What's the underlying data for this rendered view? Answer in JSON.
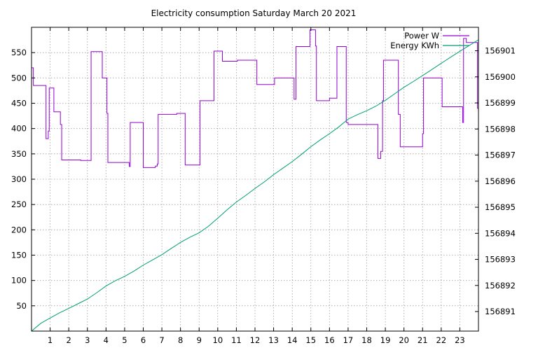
{
  "chart_data": {
    "type": "line",
    "title": "Electricity consumption Saturday March 20 2021",
    "xlim": [
      0,
      24
    ],
    "ylim": [
      0,
      600
    ],
    "y2lim": [
      156890.25,
      156901.9
    ],
    "x_ticks": [
      1,
      2,
      3,
      4,
      5,
      6,
      7,
      8,
      9,
      10,
      11,
      12,
      13,
      14,
      15,
      16,
      17,
      18,
      19,
      20,
      21,
      22,
      23
    ],
    "y_ticks": [
      50,
      100,
      150,
      200,
      250,
      300,
      350,
      400,
      450,
      500,
      550
    ],
    "y2_ticks": [
      156891,
      156892,
      156893,
      156894,
      156895,
      156896,
      156897,
      156898,
      156899,
      156900,
      156901
    ],
    "grid": true,
    "legend_position": "top-right",
    "series": [
      {
        "name": "Power W",
        "axis": "left",
        "color": "#9400d3",
        "step": true,
        "points": [
          [
            0,
            520
          ],
          [
            0.1,
            485
          ],
          [
            0.75,
            485
          ],
          [
            0.78,
            380
          ],
          [
            0.9,
            395
          ],
          [
            0.95,
            480
          ],
          [
            1.2,
            433
          ],
          [
            1.55,
            408
          ],
          [
            1.62,
            338
          ],
          [
            2.6,
            338
          ],
          [
            2.65,
            337
          ],
          [
            3.1,
            337
          ],
          [
            3.2,
            552
          ],
          [
            3.75,
            552
          ],
          [
            3.8,
            500
          ],
          [
            4.05,
            430
          ],
          [
            4.1,
            333
          ],
          [
            5.2,
            333
          ],
          [
            5.25,
            325
          ],
          [
            5.3,
            412
          ],
          [
            5.95,
            412
          ],
          [
            6.0,
            323
          ],
          [
            6.6,
            323
          ],
          [
            6.65,
            326
          ],
          [
            6.75,
            330
          ],
          [
            6.8,
            428
          ],
          [
            7.75,
            428
          ],
          [
            7.8,
            430
          ],
          [
            8.2,
            430
          ],
          [
            8.25,
            328
          ],
          [
            9.0,
            328
          ],
          [
            9.05,
            455
          ],
          [
            9.75,
            455
          ],
          [
            9.8,
            553
          ],
          [
            10.2,
            553
          ],
          [
            10.25,
            533
          ],
          [
            11.0,
            533
          ],
          [
            11.05,
            535
          ],
          [
            12.05,
            535
          ],
          [
            12.1,
            487
          ],
          [
            13.0,
            487
          ],
          [
            13.05,
            500
          ],
          [
            14.05,
            500
          ],
          [
            14.1,
            458
          ],
          [
            14.2,
            562
          ],
          [
            14.9,
            562
          ],
          [
            14.95,
            595
          ],
          [
            15.2,
            595
          ],
          [
            15.25,
            563
          ],
          [
            15.3,
            455
          ],
          [
            15.95,
            455
          ],
          [
            16.0,
            460
          ],
          [
            16.35,
            460
          ],
          [
            16.4,
            562
          ],
          [
            16.85,
            562
          ],
          [
            16.9,
            412
          ],
          [
            17.0,
            408
          ],
          [
            18.55,
            408
          ],
          [
            18.6,
            341
          ],
          [
            18.75,
            355
          ],
          [
            18.85,
            455
          ],
          [
            18.9,
            535
          ],
          [
            19.6,
            535
          ],
          [
            19.7,
            428
          ],
          [
            19.8,
            364
          ],
          [
            20.95,
            364
          ],
          [
            21.0,
            390
          ],
          [
            21.05,
            500
          ],
          [
            22.0,
            500
          ],
          [
            22.05,
            443
          ],
          [
            23.1,
            443
          ],
          [
            23.15,
            412
          ],
          [
            23.2,
            578
          ],
          [
            23.35,
            570
          ],
          [
            23.9,
            570
          ],
          [
            23.95,
            440
          ],
          [
            24,
            440
          ]
        ]
      },
      {
        "name": "Energy KWh",
        "axis": "right",
        "color": "#009e73",
        "step": false,
        "points": [
          [
            0,
            156890.25
          ],
          [
            0.5,
            156890.55
          ],
          [
            1,
            156890.75
          ],
          [
            1.5,
            156890.95
          ],
          [
            2,
            156891.12
          ],
          [
            2.5,
            156891.3
          ],
          [
            3,
            156891.48
          ],
          [
            3.5,
            156891.72
          ],
          [
            4,
            156891.98
          ],
          [
            4.5,
            156892.18
          ],
          [
            5,
            156892.35
          ],
          [
            5.5,
            156892.55
          ],
          [
            6,
            156892.78
          ],
          [
            6.5,
            156892.98
          ],
          [
            7,
            156893.18
          ],
          [
            7.5,
            156893.42
          ],
          [
            8,
            156893.65
          ],
          [
            8.5,
            156893.85
          ],
          [
            9,
            156894.02
          ],
          [
            9.5,
            156894.27
          ],
          [
            10,
            156894.58
          ],
          [
            10.5,
            156894.9
          ],
          [
            11,
            156895.2
          ],
          [
            11.5,
            156895.45
          ],
          [
            12,
            156895.72
          ],
          [
            12.5,
            156895.97
          ],
          [
            13,
            156896.25
          ],
          [
            13.5,
            156896.5
          ],
          [
            14,
            156896.75
          ],
          [
            14.5,
            156897.03
          ],
          [
            15,
            156897.32
          ],
          [
            15.5,
            156897.58
          ],
          [
            16,
            156897.82
          ],
          [
            16.5,
            156898.08
          ],
          [
            17,
            156898.38
          ],
          [
            17.5,
            156898.55
          ],
          [
            18,
            156898.7
          ],
          [
            18.5,
            156898.88
          ],
          [
            19,
            156899.1
          ],
          [
            19.5,
            156899.35
          ],
          [
            20,
            156899.6
          ],
          [
            20.5,
            156899.82
          ],
          [
            21,
            156900.05
          ],
          [
            21.5,
            156900.28
          ],
          [
            22,
            156900.52
          ],
          [
            22.5,
            156900.75
          ],
          [
            23,
            156900.98
          ],
          [
            23.5,
            156901.2
          ],
          [
            24,
            156901.42
          ]
        ]
      }
    ]
  }
}
